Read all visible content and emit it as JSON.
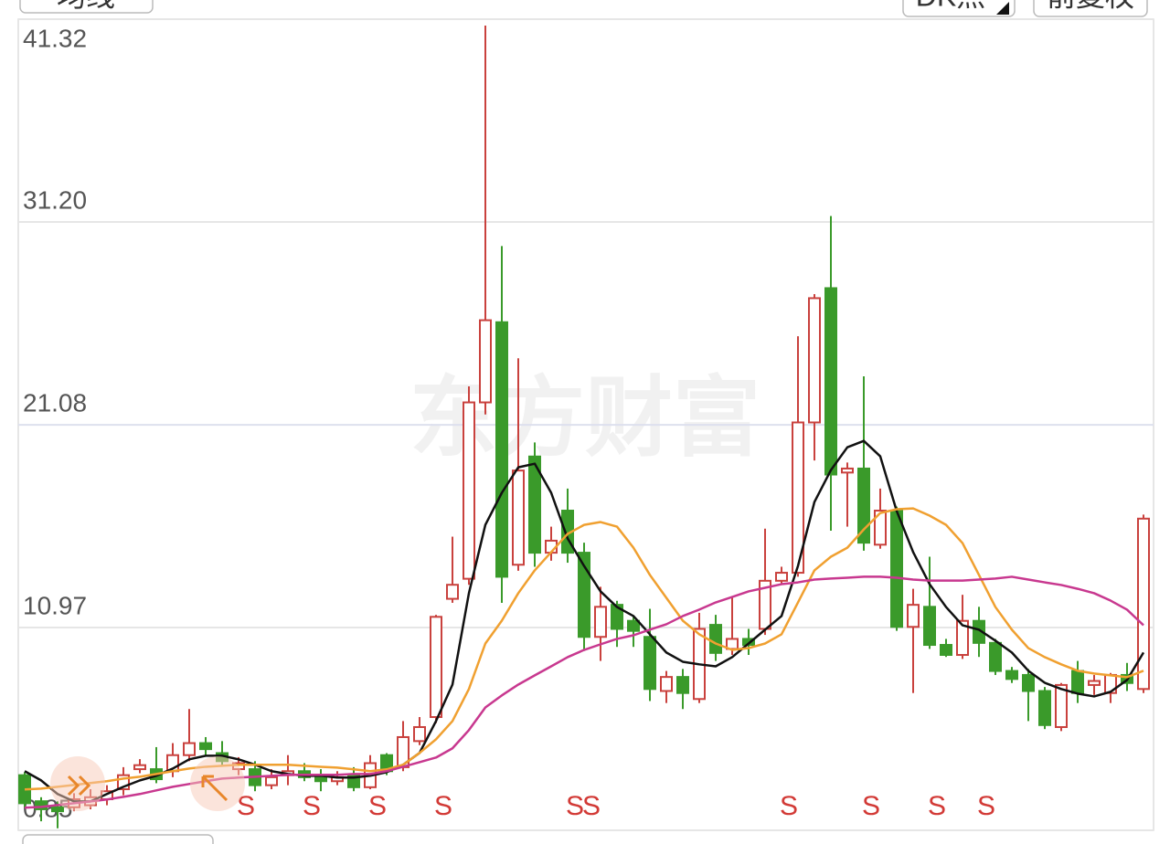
{
  "toolbar": {
    "ma_button": "均线",
    "dk_button": "DK点",
    "adjust_button": "前复权"
  },
  "chart_data": {
    "type": "candlestick",
    "watermark": "东方财富",
    "up_color": "#c9413d",
    "down_color": "#3a9a2a",
    "grid": true,
    "ylim": [
      0.85,
      41.32
    ],
    "yticks": [
      0.85,
      10.97,
      21.08,
      {
        "value": 31.2,
        "label": "31.20"
      },
      41.32
    ],
    "open": [
      3.6,
      2.3,
      2.0,
      2.0,
      2.1,
      2.4,
      2.9,
      3.9,
      3.9,
      3.8,
      4.6,
      5.2,
      4.7,
      3.9,
      3.9,
      3.1,
      3.6,
      3.8,
      3.5,
      3.3,
      3.6,
      3.0,
      4.6,
      4.0,
      5.3,
      6.5,
      12.4,
      13.4,
      22.2,
      26.2,
      14.1,
      19.5,
      14.7,
      16.8,
      14.7,
      10.5,
      12.1,
      11.3,
      10.5,
      7.8,
      8.5,
      7.4,
      11.1,
      9.9,
      10.4,
      10.9,
      13.3,
      13.7,
      21.2,
      27.9,
      18.7,
      18.9,
      15.1,
      16.8,
      11.0,
      12.0,
      10.1,
      9.6,
      11.3,
      10.2,
      8.8,
      8.6,
      7.8,
      6.0,
      8.8,
      8.1,
      7.7,
      8.6,
      7.9
    ],
    "high": [
      3.75,
      2.5,
      2.3,
      2.7,
      2.9,
      3.1,
      4.0,
      4.4,
      5.0,
      5.2,
      6.9,
      5.5,
      5.3,
      4.5,
      4.3,
      3.9,
      4.6,
      4.2,
      3.9,
      3.8,
      4.0,
      4.6,
      4.7,
      6.3,
      6.5,
      11.6,
      15.5,
      23.0,
      41.0,
      30.0,
      24.4,
      20.2,
      16.0,
      17.9,
      15.2,
      13.0,
      12.3,
      11.5,
      11.9,
      8.8,
      8.9,
      11.7,
      11.6,
      12.5,
      10.9,
      15.9,
      14.0,
      25.5,
      27.6,
      31.5,
      19.2,
      23.5,
      17.9,
      17.0,
      12.9,
      14.5,
      10.4,
      12.6,
      12.0,
      10.4,
      9.0,
      8.9,
      8.0,
      8.2,
      9.3,
      8.6,
      8.7,
      9.2,
      16.6
    ],
    "low": [
      2.0,
      1.3,
      0.95,
      1.8,
      1.9,
      2.1,
      2.6,
      3.7,
      3.2,
      3.5,
      4.3,
      4.6,
      4.1,
      3.6,
      2.8,
      2.9,
      3.1,
      3.3,
      2.8,
      3.1,
      2.8,
      2.9,
      3.6,
      3.8,
      5.1,
      6.2,
      12.2,
      13.1,
      21.6,
      12.2,
      13.8,
      14.0,
      14.3,
      14.2,
      9.8,
      9.3,
      10.0,
      10.0,
      7.3,
      7.2,
      6.9,
      7.2,
      9.3,
      9.6,
      9.6,
      10.6,
      13.1,
      13.5,
      19.3,
      15.8,
      16.0,
      14.8,
      14.9,
      10.8,
      7.7,
      9.9,
      9.5,
      9.4,
      9.5,
      8.6,
      8.2,
      6.3,
      5.9,
      5.8,
      7.2,
      7.6,
      7.2,
      7.8,
      7.7
    ],
    "close": [
      2.2,
      1.9,
      1.8,
      2.4,
      2.5,
      2.8,
      3.6,
      4.1,
      3.4,
      4.6,
      5.2,
      4.9,
      4.3,
      4.2,
      3.1,
      3.5,
      3.8,
      3.5,
      3.3,
      3.5,
      3.0,
      4.2,
      3.8,
      5.5,
      6.0,
      11.5,
      13.1,
      22.2,
      26.3,
      13.5,
      18.8,
      14.7,
      15.3,
      14.7,
      10.5,
      12.0,
      10.9,
      10.8,
      7.9,
      8.5,
      7.7,
      10.9,
      9.7,
      10.4,
      10.1,
      13.3,
      13.7,
      21.2,
      27.4,
      18.6,
      18.9,
      15.2,
      16.8,
      11.0,
      12.1,
      10.1,
      9.6,
      11.3,
      10.2,
      8.8,
      8.4,
      7.8,
      6.1,
      8.1,
      7.7,
      8.3,
      8.6,
      8.2,
      16.4
    ],
    "lines": [
      {
        "color": "#111111",
        "values": [
          3.8,
          3.34,
          2.66,
          2.29,
          2.29,
          2.66,
          3.02,
          3.34,
          3.57,
          3.93,
          4.39,
          4.57,
          4.57,
          4.39,
          4.12,
          3.8,
          3.66,
          3.57,
          3.57,
          3.48,
          3.48,
          3.57,
          3.75,
          4.12,
          4.71,
          6.3,
          8.12,
          12.68,
          16.09,
          17.69,
          18.96,
          19.14,
          17.69,
          15.41,
          14.04,
          12.77,
          11.99,
          11.54,
          10.63,
          9.72,
          9.26,
          9.13,
          9.03,
          9.49,
          10.17,
          10.86,
          11.54,
          14.04,
          17.23,
          18.82,
          19.96,
          20.28,
          19.51,
          16.78,
          14.73,
          13.13,
          11.99,
          11.08,
          10.86,
          10.31,
          9.72,
          8.81,
          8.21,
          7.9,
          7.67,
          7.53,
          7.76,
          8.35,
          9.72
        ]
      },
      {
        "color": "#f0a030",
        "values": [
          2.89,
          2.93,
          3.02,
          3.11,
          3.21,
          3.3,
          3.43,
          3.52,
          3.66,
          3.8,
          3.93,
          4.02,
          4.07,
          4.12,
          4.12,
          4.12,
          4.12,
          4.07,
          4.02,
          3.98,
          3.89,
          3.8,
          3.89,
          4.12,
          4.71,
          5.39,
          6.3,
          7.9,
          10.17,
          11.31,
          12.68,
          13.82,
          14.73,
          15.64,
          16.09,
          16.23,
          16.0,
          14.95,
          13.59,
          12.45,
          11.31,
          10.63,
          10.17,
          9.85,
          9.94,
          10.17,
          10.63,
          12.22,
          13.82,
          14.5,
          14.95,
          15.86,
          16.68,
          16.87,
          16.91,
          16.55,
          16.09,
          15.18,
          13.59,
          11.99,
          10.86,
          9.94,
          9.49,
          9.13,
          8.81,
          8.67,
          8.58,
          8.49,
          8.81
        ]
      },
      {
        "color": "#c8388f",
        "values": [
          1.98,
          2.02,
          2.11,
          2.2,
          2.29,
          2.39,
          2.52,
          2.66,
          2.84,
          3.02,
          3.16,
          3.3,
          3.43,
          3.48,
          3.52,
          3.57,
          3.62,
          3.62,
          3.62,
          3.62,
          3.66,
          3.66,
          3.8,
          4.02,
          4.25,
          4.48,
          4.94,
          5.85,
          6.98,
          7.58,
          8.12,
          8.58,
          9.03,
          9.49,
          9.85,
          10.13,
          10.4,
          10.58,
          10.86,
          11.13,
          11.54,
          11.86,
          12.22,
          12.49,
          12.77,
          12.95,
          13.13,
          13.22,
          13.36,
          13.41,
          13.45,
          13.5,
          13.5,
          13.45,
          13.36,
          13.31,
          13.31,
          13.31,
          13.36,
          13.41,
          13.5,
          13.36,
          13.22,
          13.09,
          12.9,
          12.68,
          12.31,
          11.86,
          11.08
        ]
      }
    ],
    "signals": [
      {
        "index": 13,
        "label": "S"
      },
      {
        "index": 17,
        "label": "S"
      },
      {
        "index": 21,
        "label": "S"
      },
      {
        "index": 25,
        "label": "S"
      },
      {
        "index": 33,
        "label": "S"
      },
      {
        "index": 34,
        "label": "S"
      },
      {
        "index": 46,
        "label": "S"
      },
      {
        "index": 51,
        "label": "S"
      },
      {
        "index": 55,
        "label": "S"
      },
      {
        "index": 58,
        "label": "S"
      }
    ]
  }
}
